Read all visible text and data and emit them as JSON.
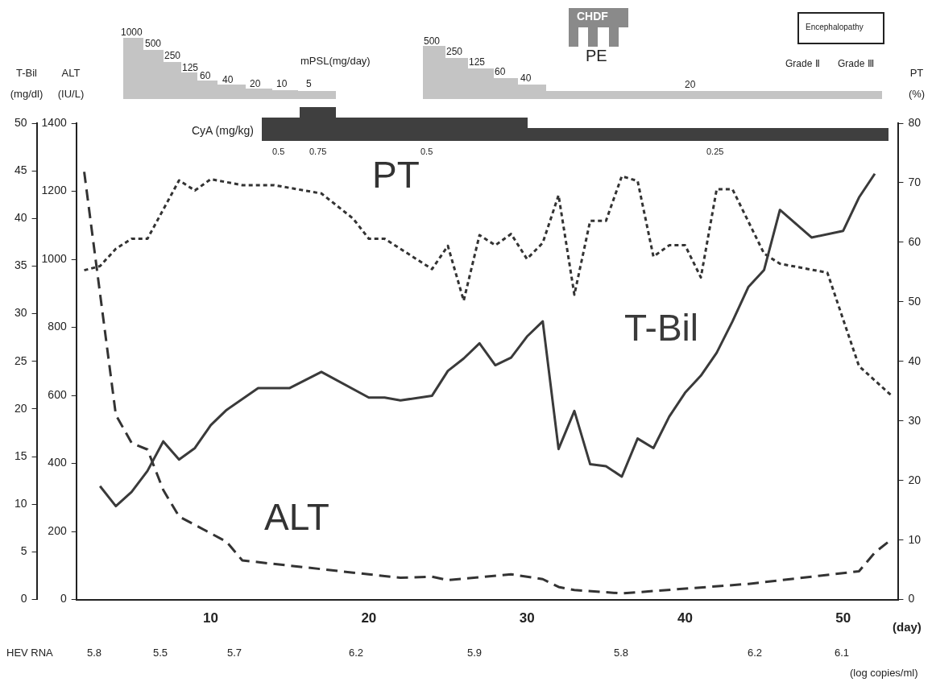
{
  "chart_data": {
    "type": "line",
    "ylabel": "T-Bil (mg/dl)",
    "y3label": "ALT (IU/L)",
    "y2label": "PT (%)",
    "xlabel": "(day)",
    "xlim": [
      1.5,
      53.5
    ],
    "xticks": [
      10,
      20,
      30,
      40,
      50
    ],
    "ylim": [
      0,
      50
    ],
    "yticks": [
      0,
      5,
      10,
      15,
      20,
      25,
      30,
      35,
      40,
      45,
      50
    ],
    "y3lim": [
      0,
      1400
    ],
    "y3ticks": [
      0,
      200,
      400,
      600,
      800,
      1000,
      1200,
      1400
    ],
    "y2lim": [
      0,
      80
    ],
    "y2ticks": [
      0,
      10,
      20,
      30,
      40,
      50,
      60,
      70,
      80
    ],
    "legend": false,
    "marker": "none",
    "series": [
      {
        "name": "T-Bil",
        "color": "#3a3a3a",
        "line_style": "solid",
        "x": [
          3,
          4,
          5,
          6,
          7,
          8,
          9,
          10,
          11,
          13,
          15,
          17,
          20,
          21,
          22,
          24,
          25,
          26,
          27,
          28,
          29,
          30,
          31,
          32,
          33,
          34,
          35,
          36,
          37,
          38,
          39,
          40,
          41,
          42,
          43,
          44,
          45,
          46,
          48,
          50,
          51,
          52
        ],
        "values": [
          11.9,
          9.8,
          11.3,
          13.5,
          16.6,
          14.7,
          15.9,
          18.3,
          19.9,
          22.2,
          22.2,
          23.9,
          21.2,
          21.2,
          20.9,
          21.4,
          24.0,
          25.3,
          26.9,
          24.6,
          25.4,
          27.6,
          29.2,
          15.8,
          19.8,
          14.2,
          14.0,
          12.9,
          16.9,
          15.9,
          19.2,
          21.7,
          23.5,
          25.9,
          29.2,
          32.8,
          34.6,
          40.9,
          38.0,
          38.7,
          42.2,
          44.7
        ]
      },
      {
        "name": "ALT",
        "color": "#333333",
        "line_style": "dashed",
        "axis": "y3",
        "x": [
          2,
          4,
          5,
          6,
          7,
          8,
          11,
          12,
          20,
          22,
          24,
          25,
          29,
          31,
          32,
          33,
          36,
          44,
          51,
          52,
          53
        ],
        "values": [
          1257,
          543,
          460,
          441,
          322,
          244,
          170,
          115,
          74,
          64,
          67,
          57,
          74,
          60,
          37,
          28,
          18,
          46,
          83,
          138,
          175
        ]
      },
      {
        "name": "PT",
        "color": "#333333",
        "line_style": "dotted",
        "axis": "y2",
        "x": [
          2,
          3,
          4,
          5,
          6,
          8,
          9,
          10,
          12,
          14,
          17,
          19,
          20,
          21,
          24,
          25,
          26,
          27,
          28,
          29,
          30,
          31,
          32,
          33,
          34,
          35,
          36,
          37,
          38,
          39,
          40,
          41,
          42,
          43,
          45,
          46,
          49,
          51,
          53
        ],
        "values": [
          55.3,
          56.0,
          58.9,
          60.6,
          60.6,
          70.4,
          68.7,
          70.6,
          69.6,
          69.6,
          68.2,
          64.0,
          60.6,
          60.6,
          55.5,
          59.4,
          50.2,
          61.2,
          59.5,
          61.4,
          57.2,
          59.9,
          67.9,
          51.2,
          63.6,
          63.6,
          71.1,
          70.3,
          57.6,
          59.5,
          59.5,
          54.1,
          68.9,
          68.9,
          58.1,
          56.4,
          54.9,
          39.2,
          34.4
        ]
      }
    ],
    "annotations": [
      "1000",
      "500",
      "250",
      "125",
      "60",
      "40",
      "20",
      "10",
      "5",
      "mPSL(mg/day)",
      "500",
      "250",
      "125",
      "60",
      "40",
      "20",
      "CHDF",
      "PE",
      "Encephalopathy",
      "Grade Ⅱ",
      "Grade Ⅲ",
      "CyA (mg/kg)",
      "0.5",
      "0.75",
      "0.5",
      "0.25",
      "HEV RNA",
      "5.8",
      "5.5",
      "5.7",
      "6.2",
      "5.9",
      "5.8",
      "6.2",
      "6.1",
      "(log copies/ml)"
    ]
  }
}
